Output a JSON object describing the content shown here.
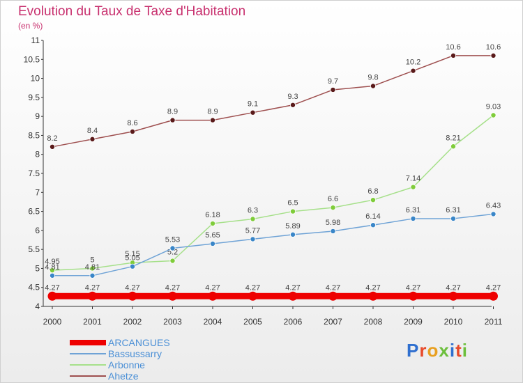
{
  "header": {
    "title": "Evolution du Taux de Taxe d'Habitation",
    "subtitle": "(en %)"
  },
  "logo": {
    "text": "Proxiti",
    "letters": [
      {
        "ch": "P",
        "color": "#2f6fcf"
      },
      {
        "ch": "r",
        "color": "#e84a2a"
      },
      {
        "ch": "o",
        "color": "#e8a020"
      },
      {
        "ch": "x",
        "color": "#6cbf3c"
      },
      {
        "ch": "i",
        "color": "#2f6fcf"
      },
      {
        "ch": "t",
        "color": "#e84a2a"
      },
      {
        "ch": "i",
        "color": "#6cbf3c"
      }
    ]
  },
  "chart_data": {
    "type": "line",
    "title": "Evolution du Taux de Taxe d'Habitation",
    "subtitle": "(en %)",
    "xlabel": "",
    "ylabel": "",
    "categories": [
      "2000",
      "2001",
      "2002",
      "2003",
      "2004",
      "2005",
      "2006",
      "2007",
      "2008",
      "2009",
      "2010",
      "2011"
    ],
    "ylim": [
      4,
      11
    ],
    "yticks": [
      4,
      4.5,
      5,
      5.5,
      6,
      6.5,
      7,
      7.5,
      8,
      8.5,
      9,
      9.5,
      10,
      10.5,
      11
    ],
    "ytick_labels": [
      "4",
      "4.5",
      "5",
      "5.5",
      "6",
      "6.5",
      "7",
      "7.5",
      "8",
      "8.5",
      "9",
      "9.5",
      "10",
      "10.5",
      "11"
    ],
    "grid": false,
    "legend_position": "bottom-left",
    "series": [
      {
        "name": "ARCANGUES",
        "color": "#ee0000",
        "line_color": "#ee0000",
        "point_color": "#ee0000",
        "width": 9,
        "values": [
          4.27,
          4.27,
          4.27,
          4.27,
          4.27,
          4.27,
          4.27,
          4.27,
          4.27,
          4.27,
          4.27,
          4.27
        ],
        "labels": [
          "4.27",
          "4.27",
          "4.27",
          "4.27",
          "4.27",
          "4.27",
          "4.27",
          "4.27",
          "4.27",
          "4.27",
          "4.27",
          "4.27"
        ]
      },
      {
        "name": "Bassussarry",
        "color": "#6fa3d6",
        "line_color": "#6fa3d6",
        "point_color": "#3a86c8",
        "width": 1.5,
        "values": [
          4.81,
          4.81,
          5.05,
          5.53,
          5.65,
          5.77,
          5.89,
          5.98,
          6.14,
          6.31,
          6.31,
          6.43
        ],
        "labels": [
          "4.81",
          "4.81",
          "5.05",
          "5.53",
          "5.65",
          "5.77",
          "5.89",
          "5.98",
          "6.14",
          "6.31",
          "6.31",
          "6.43"
        ]
      },
      {
        "name": "Arbonne",
        "color": "#a6e08a",
        "line_color": "#a6e08a",
        "point_color": "#7fcc3a",
        "width": 1.5,
        "values": [
          4.95,
          5,
          5.15,
          5.2,
          6.18,
          6.3,
          6.5,
          6.6,
          6.8,
          7.14,
          8.21,
          9.03
        ],
        "labels": [
          "4.95",
          "5",
          "5.15",
          "5.2",
          "6.18",
          "6.3",
          "6.5",
          "6.6",
          "6.8",
          "7.14",
          "8.21",
          "9.03"
        ]
      },
      {
        "name": "Ahetze",
        "color": "#9e4f4f",
        "line_color": "#9e4f4f",
        "point_color": "#5a1a1a",
        "width": 1.5,
        "values": [
          8.2,
          8.4,
          8.6,
          8.9,
          8.9,
          9.1,
          9.3,
          9.7,
          9.8,
          10.2,
          10.6,
          10.6
        ],
        "labels": [
          "8.2",
          "8.4",
          "8.6",
          "8.9",
          "8.9",
          "9.1",
          "9.3",
          "9.7",
          "9.8",
          "10.2",
          "10.6",
          "10.6"
        ]
      }
    ]
  }
}
